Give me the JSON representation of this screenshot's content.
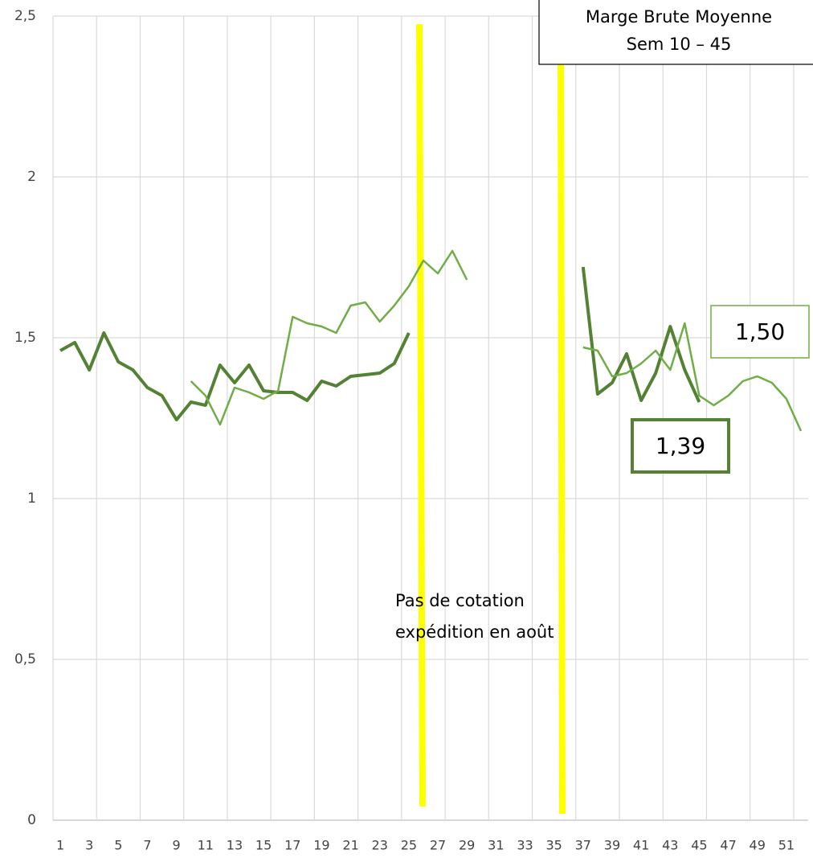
{
  "chart_data": {
    "type": "line",
    "categories": [
      "1",
      null,
      "3",
      null,
      "5",
      null,
      "7",
      null,
      "9",
      null,
      "11",
      null,
      "13",
      null,
      "15",
      null,
      "17",
      null,
      "19",
      null,
      "21",
      null,
      "23",
      null,
      "25",
      null,
      "27",
      null,
      "29",
      null,
      "31",
      null,
      "33",
      null,
      "35",
      null,
      "37",
      null,
      "39",
      null,
      "41",
      null,
      "43",
      null,
      "45",
      null,
      "47",
      null,
      "49",
      null,
      "51",
      null
    ],
    "series": [
      {
        "color": "#548235",
        "width": 4,
        "values": [
          1.46,
          1.485,
          1.4,
          1.515,
          1.425,
          1.4,
          1.345,
          1.32,
          1.245,
          1.3,
          1.29,
          1.415,
          1.36,
          1.415,
          1.335,
          1.33,
          1.33,
          1.305,
          1.365,
          1.35,
          1.38,
          1.385,
          1.39,
          1.42,
          1.515,
          null,
          null,
          null,
          null,
          null,
          null,
          null,
          null,
          null,
          null,
          null,
          1.72,
          1.325,
          1.36,
          1.45,
          1.305,
          1.39,
          1.535,
          1.4,
          1.3,
          null,
          null,
          null,
          null,
          null,
          null,
          null
        ]
      },
      {
        "color": "#70ad47",
        "width": 2.5,
        "values": [
          null,
          null,
          null,
          null,
          null,
          null,
          null,
          null,
          null,
          1.365,
          1.32,
          1.23,
          1.345,
          1.33,
          1.31,
          1.335,
          1.565,
          1.545,
          1.535,
          1.515,
          1.6,
          1.61,
          1.55,
          1.6,
          1.66,
          1.74,
          1.7,
          1.77,
          1.68,
          null,
          null,
          null,
          null,
          null,
          null,
          null,
          1.47,
          1.46,
          1.38,
          1.39,
          1.42,
          1.46,
          1.4,
          1.545,
          1.32,
          1.29,
          1.32,
          1.365,
          1.38,
          1.36,
          1.31,
          1.21
        ]
      }
    ],
    "ylim": [
      0,
      2.5
    ],
    "yticks": [
      0,
      {
        "value": 0.5,
        "label": "0,5"
      },
      1,
      {
        "value": 1.5,
        "label": "1,5"
      },
      2,
      {
        "value": 2.5,
        "label": "2,5"
      }
    ],
    "grid": true,
    "annotations": {
      "title_box": [
        "Marge Brute Moyenne",
        "Sem 10 – 45"
      ],
      "note": [
        "Pas de cotation",
        "expédition en août"
      ],
      "average_light": "1,50",
      "average_dark": "1,39"
    }
  }
}
